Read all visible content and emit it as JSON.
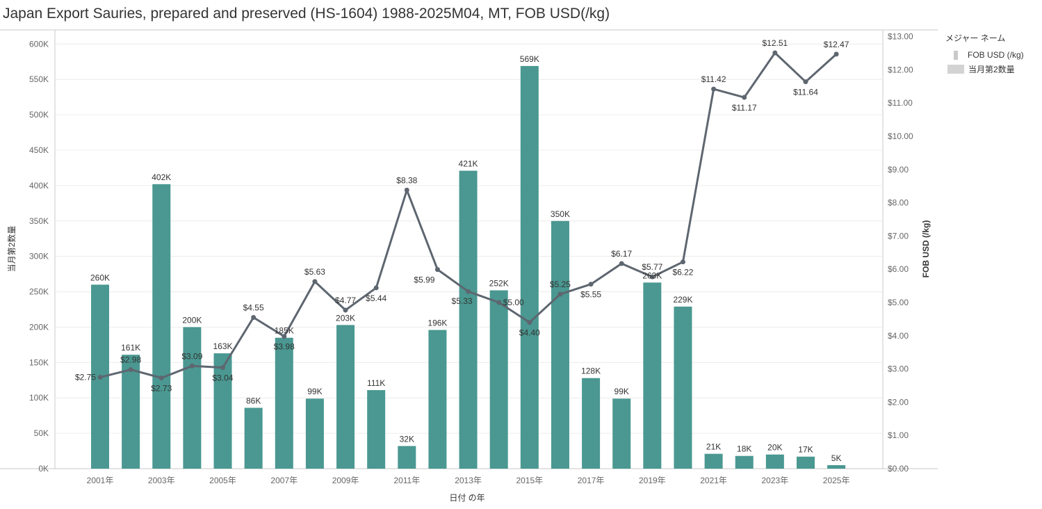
{
  "title": "Japan Export Sauries, prepared and preserved (HS-1604) 1988-2025M04, MT, FOB USD(/kg)",
  "legend": {
    "title": "メジャー ネーム",
    "items": [
      {
        "label": "FOB USD (/kg)",
        "kind": "line"
      },
      {
        "label": "当月第2数量",
        "kind": "bar"
      }
    ]
  },
  "colors": {
    "bar": "#4a9891",
    "line": "#5e6670",
    "grid": "#ececec",
    "axis": "#c8c8c8",
    "tick": "#666666"
  },
  "chart_data": {
    "type": "bar",
    "xlabel": "日付 の年",
    "ylabel": "当月第2数量",
    "y2label": "FOB USD (/kg)",
    "ylim": [
      0,
      620000
    ],
    "y2lim": [
      0,
      13.2
    ],
    "years": [
      2001,
      2002,
      2003,
      2004,
      2005,
      2006,
      2007,
      2008,
      2009,
      2010,
      2011,
      2012,
      2013,
      2014,
      2015,
      2016,
      2017,
      2018,
      2019,
      2020,
      2021,
      2022,
      2023,
      2024,
      2025
    ],
    "x_ticks": [
      "2001年",
      "2003年",
      "2005年",
      "2007年",
      "2009年",
      "2011年",
      "2013年",
      "2015年",
      "2017年",
      "2019年",
      "2021年",
      "2023年",
      "2025年"
    ],
    "y_ticks": [
      "0K",
      "50K",
      "100K",
      "150K",
      "200K",
      "250K",
      "300K",
      "350K",
      "400K",
      "450K",
      "500K",
      "550K",
      "600K"
    ],
    "y2_ticks": [
      "$0.00",
      "$1.00",
      "$2.00",
      "$3.00",
      "$4.00",
      "$5.00",
      "$6.00",
      "$7.00",
      "$8.00",
      "$9.00",
      "$10.00",
      "$11.00",
      "$12.00",
      "$13.00"
    ],
    "series": [
      {
        "name": "当月第2数量",
        "kind": "bar",
        "values": [
          260000,
          161000,
          402000,
          200000,
          163000,
          86000,
          185000,
          99000,
          203000,
          111000,
          32000,
          196000,
          421000,
          252000,
          569000,
          350000,
          128000,
          99000,
          263000,
          229000,
          21000,
          18000,
          20000,
          17000,
          5000
        ],
        "labels": [
          "260K",
          "161K",
          "402K",
          "200K",
          "163K",
          "86K",
          "185K",
          "99K",
          "203K",
          "111K",
          "32K",
          "196K",
          "421K",
          "252K",
          "569K",
          "350K",
          "128K",
          "99K",
          "263K",
          "229K",
          "21K",
          "18K",
          "20K",
          "17K",
          "5K"
        ]
      },
      {
        "name": "FOB USD (/kg)",
        "kind": "line",
        "values": [
          2.75,
          2.98,
          2.73,
          3.09,
          3.04,
          4.55,
          3.98,
          5.63,
          4.77,
          5.44,
          8.38,
          5.99,
          5.33,
          5.0,
          4.4,
          5.25,
          5.55,
          6.17,
          5.77,
          6.22,
          11.42,
          11.17,
          12.51,
          11.64,
          12.47
        ],
        "labels": [
          "$2.75",
          "$2.98",
          "$2.73",
          "$3.09",
          "$3.04",
          "$4.55",
          "$3.98",
          "$5.63",
          "$4.77",
          "$5.44",
          "$8.38",
          "$5.99",
          "$5.33",
          "$5.00",
          "$4.40",
          "$5.25",
          "$5.55",
          "$6.17",
          "$5.77",
          "$6.22",
          "$11.42",
          "$11.17",
          "$12.51",
          "$11.64",
          "$12.47"
        ]
      }
    ]
  }
}
